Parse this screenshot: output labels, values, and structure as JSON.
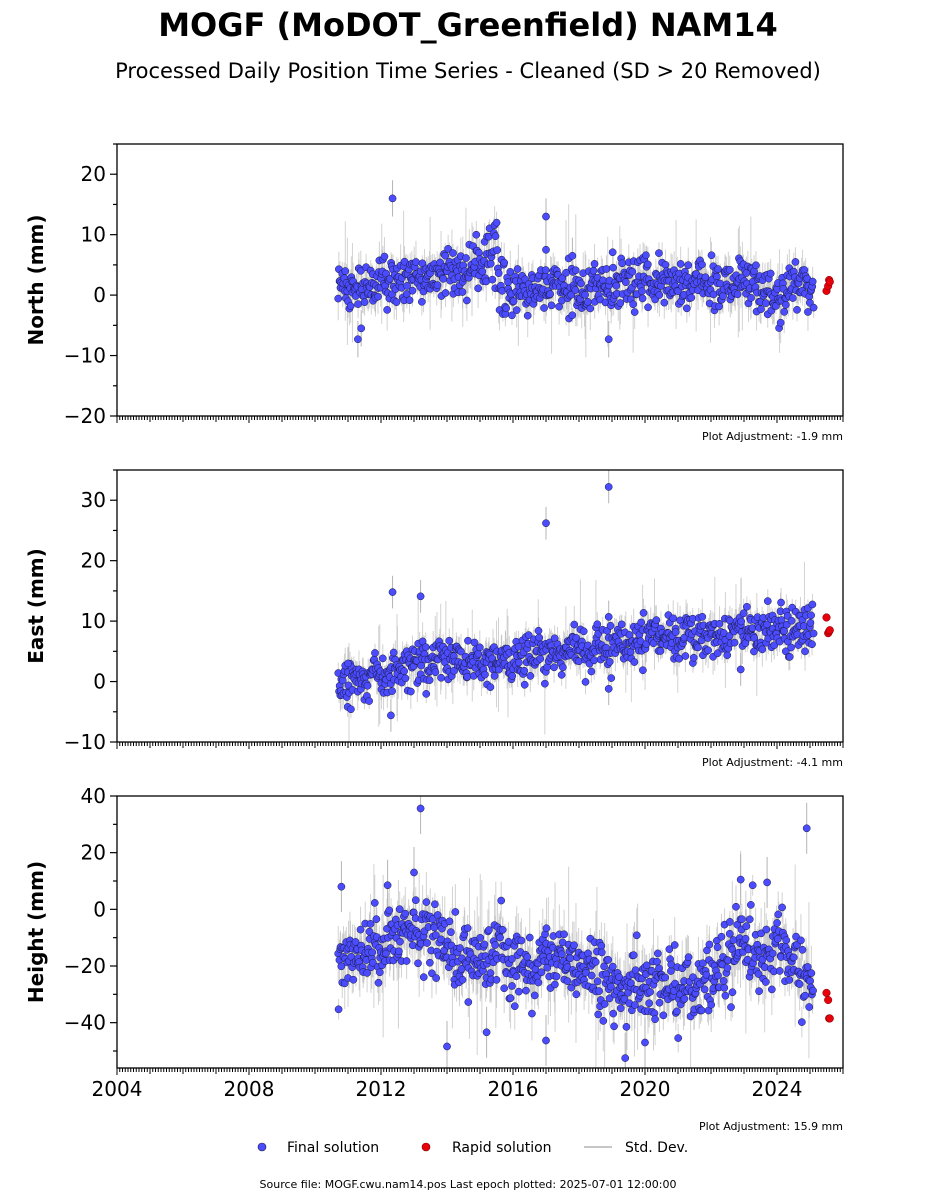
{
  "title": "MOGF (MoDOT_Greenfield) NAM14",
  "subtitle": "Processed Daily Position Time Series - Cleaned (SD > 20 Removed)",
  "source_note": "Source file: MOGF.cwu.nam14.pos  Last epoch plotted: 2025-07-01 12:00:00",
  "colors": {
    "final": "#4b4bff",
    "final_edge": "#1a1a3a",
    "rapid": "#e8000b",
    "std": "#b4b4b4",
    "axis": "#000000"
  },
  "legend": {
    "placement": "bottom-center",
    "items": [
      {
        "label": "Final solution",
        "marker": "blue-dot"
      },
      {
        "label": "Rapid solution",
        "marker": "red-dot"
      },
      {
        "label": "Std. Dev.",
        "marker": "gray-line"
      }
    ]
  },
  "chart_data": [
    {
      "type": "scatter",
      "ylabel": "North (mm)",
      "xlabel": "",
      "xlim": [
        2004,
        2026
      ],
      "ylim": [
        -20,
        25
      ],
      "yticks": [
        -20,
        -10,
        0,
        10,
        20
      ],
      "yminor_step": 5,
      "xticks": [
        2004,
        2008,
        2012,
        2016,
        2020,
        2024
      ],
      "x_tick_labels_shown": false,
      "grid": false,
      "annotation": "Plot Adjustment: -1.9 mm",
      "series": [
        {
          "name": "Final solution",
          "x_range": [
            2010.7,
            2025.1
          ],
          "trend": [
            [
              2010.7,
              1.5
            ],
            [
              2012.0,
              1.5
            ],
            [
              2013.0,
              3.0
            ],
            [
              2014.0,
              4.0
            ],
            [
              2015.0,
              5.5
            ],
            [
              2015.5,
              8.0
            ],
            [
              2015.6,
              0.5
            ],
            [
              2017.0,
              1.0
            ],
            [
              2019.0,
              1.5
            ],
            [
              2021.0,
              2.0
            ],
            [
              2023.0,
              2.0
            ],
            [
              2023.6,
              0.5
            ],
            [
              2024.0,
              -1.0
            ],
            [
              2024.5,
              2.5
            ],
            [
              2025.1,
              0.0
            ]
          ],
          "scatter_sd": 2.0,
          "outliers": [
            [
              2012.35,
              16.0
            ],
            [
              2017.0,
              13.0
            ],
            [
              2017.0,
              7.5
            ],
            [
              2011.3,
              -7.3
            ],
            [
              2018.9,
              -7.3
            ],
            [
              2017.8,
              6.5
            ],
            [
              2011.4,
              -5.5
            ]
          ]
        },
        {
          "name": "Rapid solution",
          "points": [
            [
              2025.5,
              0.7
            ],
            [
              2025.55,
              1.5
            ],
            [
              2025.58,
              2.5
            ],
            [
              2025.6,
              2.2
            ]
          ]
        }
      ]
    },
    {
      "type": "scatter",
      "ylabel": "East (mm)",
      "xlabel": "",
      "xlim": [
        2004,
        2026
      ],
      "ylim": [
        -10,
        35
      ],
      "yticks": [
        -10,
        0,
        10,
        20,
        30
      ],
      "yminor_step": 5,
      "xticks": [
        2004,
        2008,
        2012,
        2016,
        2020,
        2024
      ],
      "x_tick_labels_shown": false,
      "grid": false,
      "annotation": "Plot Adjustment: -4.1 mm",
      "series": [
        {
          "name": "Final solution",
          "x_range": [
            2010.7,
            2025.1
          ],
          "trend": [
            [
              2010.7,
              -0.5
            ],
            [
              2012.0,
              1.0
            ],
            [
              2013.0,
              2.5
            ],
            [
              2014.0,
              4.0
            ],
            [
              2015.0,
              3.0
            ],
            [
              2016.0,
              3.5
            ],
            [
              2017.0,
              4.5
            ],
            [
              2018.0,
              5.5
            ],
            [
              2019.0,
              6.0
            ],
            [
              2020.0,
              6.5
            ],
            [
              2021.0,
              7.5
            ],
            [
              2022.0,
              8.0
            ],
            [
              2023.0,
              8.0
            ],
            [
              2024.0,
              8.5
            ],
            [
              2025.1,
              9.0
            ]
          ],
          "scatter_sd": 1.8,
          "outliers": [
            [
              2017.0,
              26.2
            ],
            [
              2018.9,
              32.2
            ],
            [
              2012.35,
              14.8
            ],
            [
              2013.2,
              14.1
            ],
            [
              2018.9,
              -1.2
            ],
            [
              2022.9,
              2.0
            ],
            [
              2018.9,
              10.7
            ],
            [
              2012.3,
              -5.6
            ],
            [
              2011.0,
              3.0
            ]
          ]
        },
        {
          "name": "Rapid solution",
          "points": [
            [
              2025.5,
              10.6
            ],
            [
              2025.55,
              8.0
            ],
            [
              2025.58,
              8.3
            ],
            [
              2025.6,
              8.5
            ]
          ]
        }
      ]
    },
    {
      "type": "scatter",
      "ylabel": "Height (mm)",
      "xlabel": "",
      "xlim": [
        2004,
        2026
      ],
      "ylim": [
        -56,
        40
      ],
      "yticks": [
        -40,
        -20,
        0,
        20,
        40
      ],
      "yminor_step": 10,
      "xticks": [
        2004,
        2008,
        2012,
        2016,
        2020,
        2024
      ],
      "x_tick_labels": [
        "2004",
        "2008",
        "2012",
        "2016",
        "2020",
        "2024"
      ],
      "x_tick_labels_shown": true,
      "grid": false,
      "annotation": "Plot Adjustment: 15.9 mm",
      "series": [
        {
          "name": "Final solution",
          "x_range": [
            2010.7,
            2025.1
          ],
          "trend": [
            [
              2010.7,
              -15.0
            ],
            [
              2011.5,
              -15.0
            ],
            [
              2012.5,
              -8.0
            ],
            [
              2013.5,
              -8.0
            ],
            [
              2014.5,
              -18.0
            ],
            [
              2015.5,
              -18.0
            ],
            [
              2016.5,
              -20.0
            ],
            [
              2017.5,
              -18.0
            ],
            [
              2018.5,
              -22.0
            ],
            [
              2019.5,
              -30.0
            ],
            [
              2020.5,
              -26.0
            ],
            [
              2021.5,
              -28.0
            ],
            [
              2022.5,
              -18.0
            ],
            [
              2023.0,
              -10.0
            ],
            [
              2023.5,
              -18.0
            ],
            [
              2024.0,
              -12.0
            ],
            [
              2024.7,
              -20.0
            ],
            [
              2025.1,
              -28.0
            ]
          ],
          "scatter_sd": 6.0,
          "outliers": [
            [
              2013.2,
              35.6
            ],
            [
              2024.9,
              28.6
            ],
            [
              2013.0,
              13.0
            ],
            [
              2022.9,
              10.5
            ],
            [
              2023.7,
              9.5
            ],
            [
              2014.0,
              -48.4
            ],
            [
              2019.4,
              -52.5
            ],
            [
              2017.0,
              -46.3
            ],
            [
              2015.2,
              -43.4
            ],
            [
              2020.0,
              -47.0
            ],
            [
              2012.2,
              8.5
            ],
            [
              2010.8,
              8.0
            ]
          ]
        },
        {
          "name": "Rapid solution",
          "points": [
            [
              2025.5,
              -29.5
            ],
            [
              2025.55,
              -32.0
            ],
            [
              2025.58,
              -38.5
            ],
            [
              2025.6,
              -38.5
            ]
          ]
        }
      ]
    }
  ]
}
